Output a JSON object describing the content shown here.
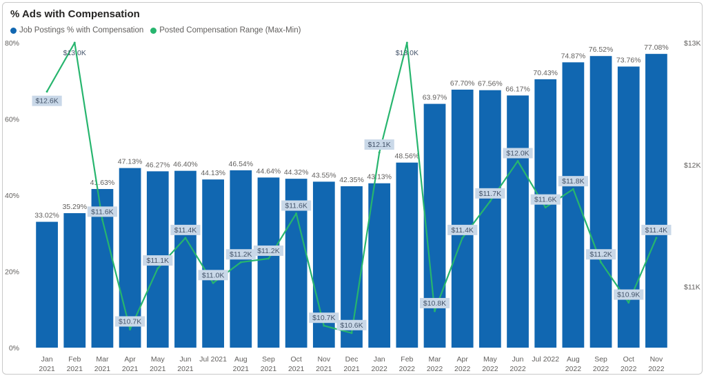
{
  "title": "% Ads with Compensation",
  "colors": {
    "bar": "#1167b1",
    "line": "#27b56e",
    "labelBg": "#c9d8e8"
  },
  "chart_data": {
    "type": "bar+line",
    "title": "% Ads with Compensation",
    "categories": [
      [
        "Jan",
        "2021"
      ],
      [
        "Feb",
        "2021"
      ],
      [
        "Mar",
        "2021"
      ],
      [
        "Apr",
        "2021"
      ],
      [
        "May",
        "2021"
      ],
      [
        "Jun",
        "2021"
      ],
      [
        "Jul 2021",
        ""
      ],
      [
        "Aug",
        "2021"
      ],
      [
        "Sep",
        "2021"
      ],
      [
        "Oct",
        "2021"
      ],
      [
        "Nov",
        "2021"
      ],
      [
        "Dec",
        "2021"
      ],
      [
        "Jan",
        "2022"
      ],
      [
        "Feb",
        "2022"
      ],
      [
        "Mar",
        "2022"
      ],
      [
        "Apr",
        "2022"
      ],
      [
        "May",
        "2022"
      ],
      [
        "Jun",
        "2022"
      ],
      [
        "Jul 2022",
        ""
      ],
      [
        "Aug",
        "2022"
      ],
      [
        "Sep",
        "2022"
      ],
      [
        "Oct",
        "2022"
      ],
      [
        "Nov",
        "2022"
      ]
    ],
    "series": [
      {
        "name": "Job Postings % with Compensation",
        "type": "bar",
        "axis": "left",
        "values": [
          33.02,
          35.29,
          41.63,
          47.13,
          46.27,
          46.4,
          44.13,
          46.54,
          44.64,
          44.32,
          43.55,
          42.35,
          43.13,
          48.56,
          63.97,
          67.7,
          67.56,
          66.17,
          70.43,
          74.87,
          76.52,
          73.76,
          77.08
        ],
        "labels": [
          "33.02%",
          "35.29%",
          "41.63%",
          "47.13%",
          "46.27%",
          "46.40%",
          "44.13%",
          "46.54%",
          "44.64%",
          "44.32%",
          "43.55%",
          "42.35%",
          "43.13%",
          "48.56%",
          "63.97%",
          "67.70%",
          "67.56%",
          "66.17%",
          "70.43%",
          "74.87%",
          "76.52%",
          "73.76%",
          "77.08%"
        ]
      },
      {
        "name": "Posted Compensation Range (Max-Min)",
        "type": "line",
        "axis": "right",
        "values": [
          12600,
          13000,
          11550,
          10650,
          11150,
          11400,
          11030,
          11200,
          11230,
          11600,
          10680,
          10620,
          12100,
          13000,
          10800,
          11400,
          11700,
          12030,
          11650,
          11800,
          11200,
          10870,
          11400
        ],
        "labels": [
          "$12.6K",
          "$13.0K",
          "$11.6K",
          "$10.7K",
          "$11.1K",
          "$11.4K",
          "$11.0K",
          "$11.2K",
          "$11.2K",
          "$11.6K",
          "$10.7K",
          "$10.6K",
          "$12.1K",
          "$13.0K",
          "$10.8K",
          "$11.4K",
          "$11.7K",
          "$12.0K",
          "$11.6K",
          "$11.8K",
          "$11.2K",
          "$10.9K",
          "$11.4K"
        ]
      }
    ],
    "y_left": {
      "min": 0,
      "max": 80,
      "ticks": [
        0,
        20,
        40,
        60,
        80
      ],
      "tickLabels": [
        "0%",
        "20%",
        "40%",
        "60%",
        "80%"
      ]
    },
    "y_right": {
      "min": 10500,
      "max": 13000,
      "ticks": [
        11000,
        12000,
        13000
      ],
      "tickLabels": [
        "$11K",
        "$12K",
        "$13K"
      ]
    },
    "legend": "top-left",
    "grid": false
  }
}
